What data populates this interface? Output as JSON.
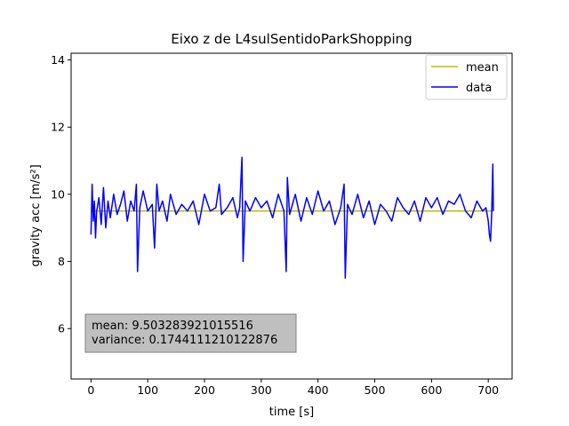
{
  "chart_data": {
    "type": "line",
    "title": "Eixo z de L4sulSentidoParkShopping",
    "xlabel": "time [s]",
    "ylabel": "gravity acc [m/s²]",
    "xlim": [
      -35,
      742
    ],
    "ylim": [
      4.5,
      14.2
    ],
    "xticks": [
      0,
      100,
      200,
      300,
      400,
      500,
      600,
      700
    ],
    "yticks": [
      6,
      8,
      10,
      12,
      14
    ],
    "grid": false,
    "legend": "top-right",
    "series": [
      {
        "name": "mean",
        "color": "#bfbf00",
        "constant": 9.503283921015516,
        "x_range": [
          0,
          709
        ]
      },
      {
        "name": "data",
        "color": "#0000ff",
        "x": [
          0,
          2,
          4,
          6,
          8,
          10,
          14,
          18,
          22,
          26,
          30,
          34,
          40,
          46,
          52,
          58,
          64,
          70,
          76,
          80,
          82,
          86,
          92,
          100,
          108,
          112,
          116,
          120,
          126,
          134,
          140,
          150,
          160,
          170,
          180,
          190,
          200,
          210,
          220,
          226,
          230,
          240,
          250,
          258,
          262,
          266,
          268,
          272,
          280,
          290,
          300,
          310,
          320,
          330,
          340,
          344,
          346,
          350,
          360,
          370,
          380,
          390,
          400,
          410,
          420,
          430,
          440,
          446,
          448,
          452,
          460,
          470,
          480,
          490,
          500,
          510,
          520,
          530,
          540,
          550,
          560,
          570,
          580,
          590,
          600,
          610,
          620,
          630,
          640,
          650,
          660,
          670,
          680,
          690,
          696,
          700,
          702,
          704,
          706,
          708,
          709
        ],
        "y": [
          8.8,
          10.3,
          9.2,
          9.8,
          8.7,
          9.5,
          9.9,
          9.1,
          10.2,
          9.0,
          9.8,
          9.3,
          10.0,
          9.4,
          9.7,
          10.1,
          9.2,
          9.8,
          9.5,
          10.3,
          7.7,
          9.6,
          10.1,
          9.5,
          9.7,
          8.4,
          10.3,
          9.5,
          9.8,
          9.2,
          10.0,
          9.4,
          9.7,
          9.5,
          9.8,
          9.1,
          10.0,
          9.5,
          9.6,
          10.3,
          9.4,
          9.6,
          9.9,
          9.3,
          9.6,
          11.1,
          8.0,
          9.8,
          9.5,
          9.9,
          9.6,
          9.8,
          9.3,
          10.0,
          9.5,
          7.7,
          10.5,
          9.4,
          10.0,
          9.2,
          9.9,
          9.4,
          10.1,
          9.5,
          9.8,
          9.1,
          9.6,
          10.3,
          7.5,
          9.7,
          9.4,
          10.0,
          9.3,
          9.8,
          9.1,
          9.7,
          9.5,
          9.2,
          9.9,
          9.6,
          9.4,
          9.8,
          9.2,
          9.9,
          9.6,
          9.9,
          9.4,
          9.8,
          9.7,
          10.0,
          9.5,
          9.3,
          9.8,
          9.5,
          9.6,
          9.2,
          8.8,
          8.6,
          9.4,
          10.9,
          9.5
        ]
      }
    ],
    "annotation": {
      "mean_text": "mean: 9.503283921015516",
      "variance_text": "variance: 0.1744111210122876"
    }
  }
}
